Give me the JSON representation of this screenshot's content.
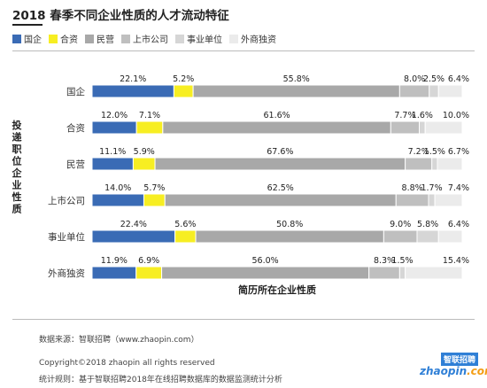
{
  "title": "2018 春季不同企业性质的人才流动特征",
  "colors": {
    "state_owned": "#3a6bb5",
    "joint_venture": "#f7ee22",
    "private": "#a8a8a8",
    "listed": "#bfbfbf",
    "institution": "#d6d6d6",
    "foreign": "#ebebeb"
  },
  "chart_data": {
    "type": "bar",
    "orientation": "horizontal",
    "stacked": true,
    "normalized": true,
    "title": "2018 春季不同企业性质的人才流动特征",
    "ylabel": "投递职位企业性质",
    "xlabel": "简历所在企业性质",
    "legend_position": "top-left",
    "grid": false,
    "categories": [
      "国企",
      "合资",
      "民营",
      "上市公司",
      "事业单位",
      "外商独资"
    ],
    "series": [
      {
        "name": "国企",
        "color": "#3a6bb5",
        "values": [
          22.1,
          12.0,
          11.1,
          14.0,
          22.4,
          11.9
        ],
        "labels": [
          "22.1%",
          "12.0%",
          "11.1%",
          "14.0%",
          "22.4%",
          "11.9%"
        ]
      },
      {
        "name": "合资",
        "color": "#f7ee22",
        "values": [
          5.2,
          7.1,
          5.9,
          5.7,
          5.6,
          6.9
        ],
        "labels": [
          "5.2%",
          "7.1%",
          "5.9%",
          "5.7%",
          "5.6%",
          "6.9%"
        ]
      },
      {
        "name": "民营",
        "color": "#a8a8a8",
        "values": [
          55.8,
          61.6,
          67.6,
          62.5,
          50.8,
          56.0
        ],
        "labels": [
          "55.8%",
          "61.6%",
          "67.6%",
          "62.5%",
          "50.8%",
          "56.0%"
        ]
      },
      {
        "name": "上市公司",
        "color": "#bfbfbf",
        "values": [
          8.0,
          7.7,
          7.2,
          8.8,
          9.0,
          8.3
        ],
        "labels": [
          "8.0%",
          "7.7%",
          "7.2%",
          "8.8%",
          "9.0%",
          "8.3%"
        ]
      },
      {
        "name": "事业单位",
        "color": "#d6d6d6",
        "values": [
          2.5,
          1.6,
          1.5,
          1.7,
          5.8,
          1.5
        ],
        "labels": [
          "2.5%",
          "1.6%",
          "1.5%",
          "1.7%",
          "5.8%",
          "1.5%"
        ]
      },
      {
        "name": "外商独资",
        "color": "#ebebeb",
        "values": [
          6.4,
          10.0,
          6.7,
          7.4,
          6.4,
          15.4
        ],
        "labels": [
          "6.4%",
          "10.0%",
          "6.7%",
          "7.4%",
          "6.4%",
          "15.4%"
        ]
      }
    ]
  },
  "footer": {
    "source": "数据来源：智联招聘（www.zhaopin.com）",
    "copyright": "Copyright©2018 zhaopin all rights reserved",
    "method": "统计规则：基于智联招聘2018年在线招聘数据库的数据监测统计分析"
  },
  "brand": {
    "name_cn": "智联招聘",
    "name_en_prefix": "zhaopin",
    "name_en_suffix": ".com"
  }
}
